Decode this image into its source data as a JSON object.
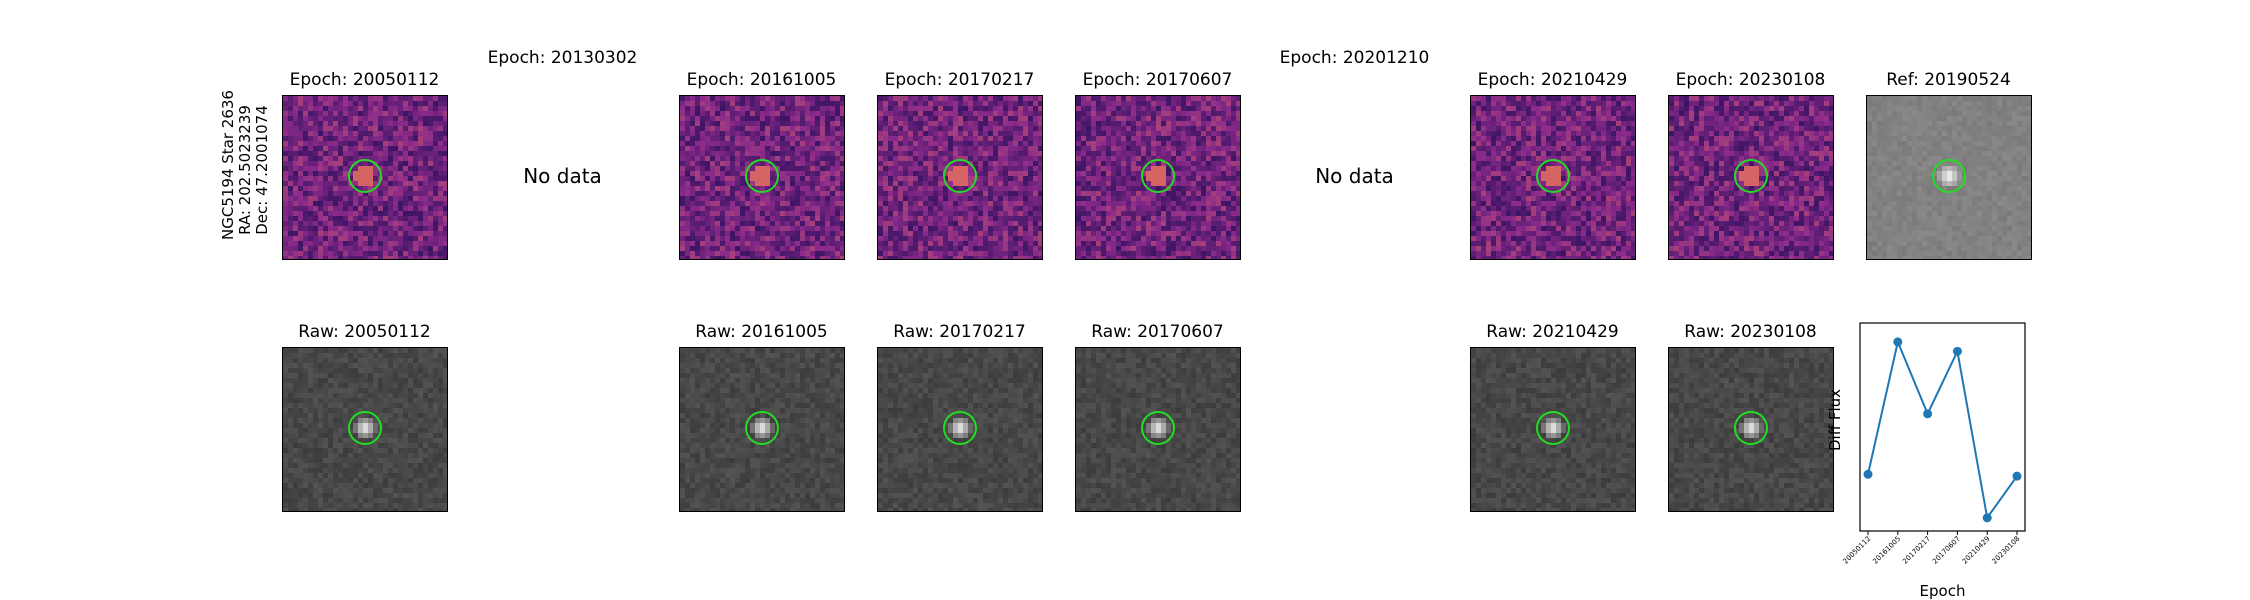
{
  "star_label": {
    "name": "NGC5194 Star 2636",
    "ra": "RA: 202.5023239",
    "dec": "Dec: 47.2001074"
  },
  "epoch_titles": {
    "e20050112": "Epoch: 20050112",
    "e20130302": "Epoch: 20130302",
    "e20161005": "Epoch: 20161005",
    "e20170217": "Epoch: 20170217",
    "e20170607": "Epoch: 20170607",
    "e20201210": "Epoch: 20201210",
    "e20210429": "Epoch: 20210429",
    "e20230108": "Epoch: 20230108",
    "ref": "Ref: 20190524"
  },
  "raw_titles": {
    "r20050112": "Raw: 20050112",
    "r20161005": "Raw: 20161005",
    "r20170217": "Raw: 20170217",
    "r20170607": "Raw: 20170607",
    "r20210429": "Raw: 20210429",
    "r20230108": "Raw: 20230108"
  },
  "no_data_text": "No data",
  "colors": {
    "circle": "#22dd22",
    "line": "#1f77b4",
    "diff_dark": "#2a0f5a",
    "diff_mid": "#8a2a8a",
    "diff_bright": "#e8735a",
    "raw_bg": "#3c3c3c",
    "ref_bg": "#7a7a7a"
  },
  "chart_data": {
    "type": "line",
    "x": [
      "20050112",
      "20161005",
      "20170217",
      "20170607",
      "20210429",
      "20230108"
    ],
    "values": [
      0.3,
      1.0,
      0.62,
      0.95,
      0.07,
      0.29
    ],
    "ylabel": "Diff Flux",
    "xlabel": "Epoch",
    "ylim": [
      0.0,
      1.1
    ],
    "grid": false
  }
}
